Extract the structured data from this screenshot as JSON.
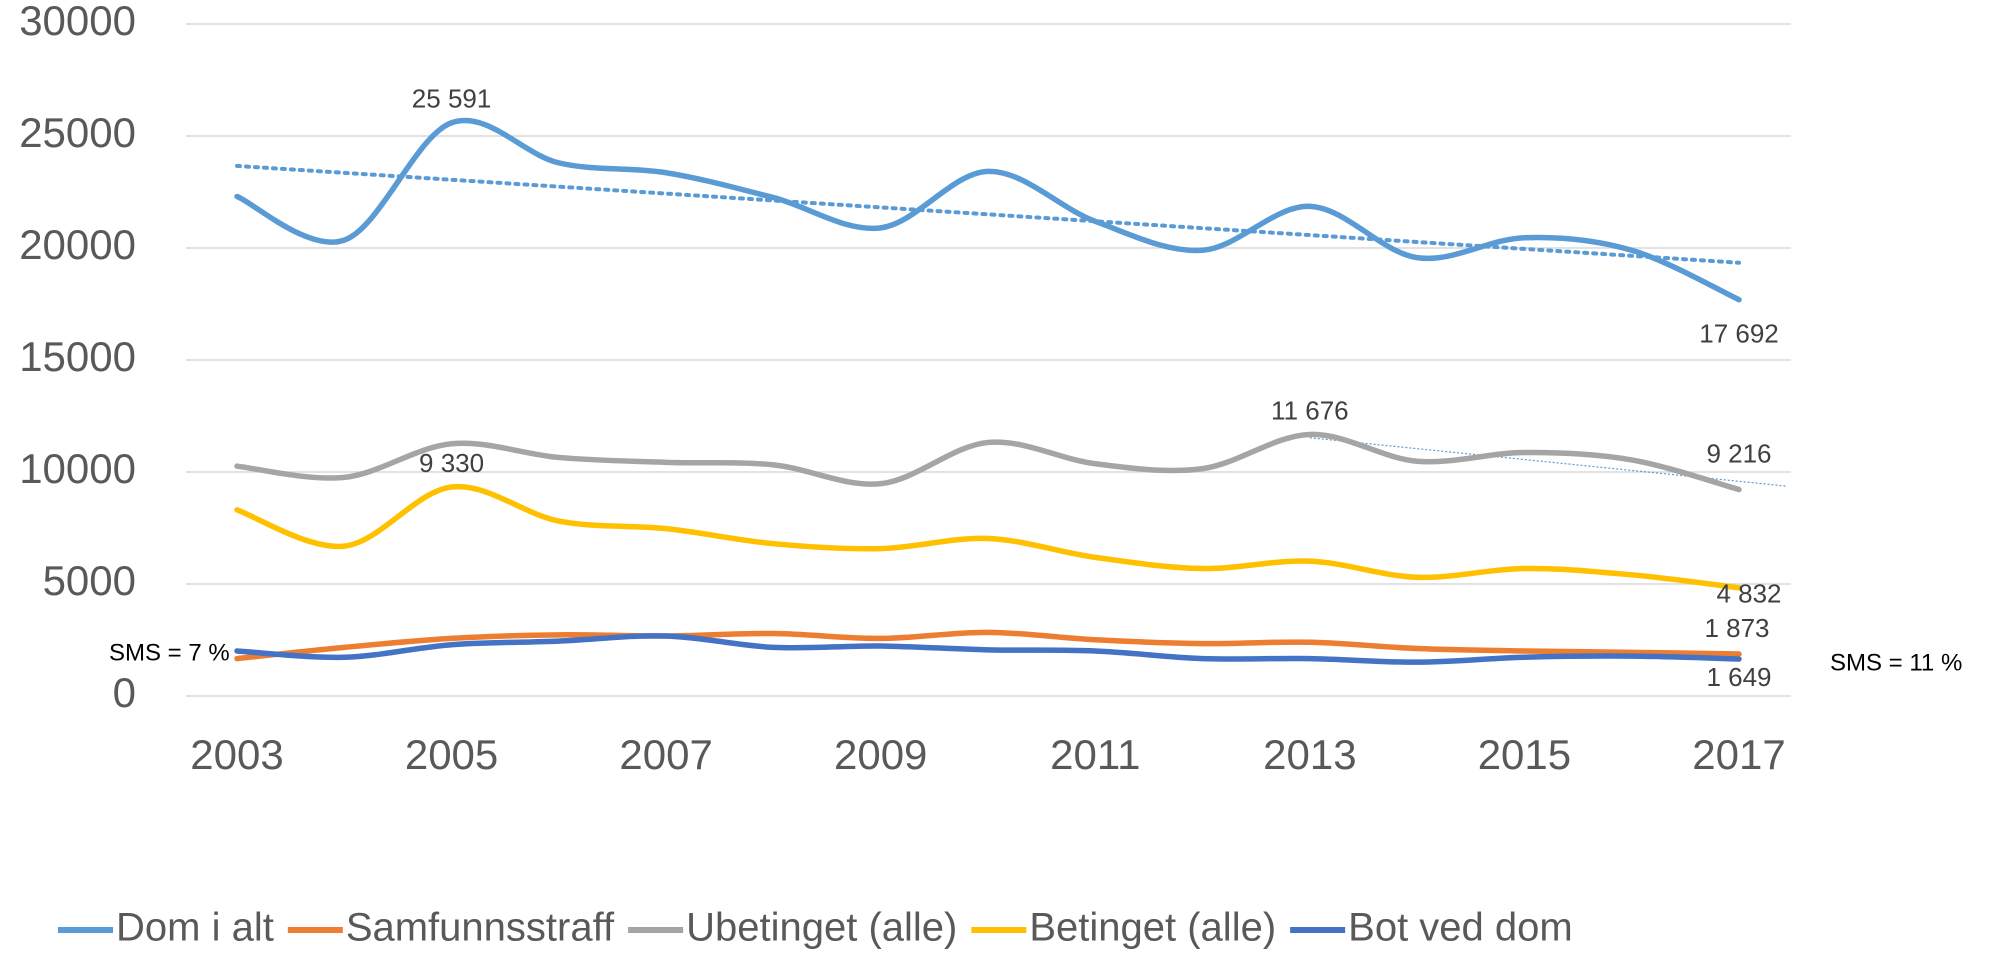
{
  "chart_data": {
    "type": "line",
    "categories": [
      "2003",
      null,
      "2005",
      null,
      "2007",
      null,
      "2009",
      null,
      "2011",
      null,
      "2013",
      null,
      "2015",
      null,
      "2017"
    ],
    "ylim": [
      0,
      30000
    ],
    "yticks": [
      0,
      5000,
      10000,
      15000,
      20000,
      25000,
      30000
    ],
    "grid": true,
    "legend": "bottom",
    "smooth": true,
    "series": [
      {
        "name": "Dom i alt",
        "color": "#5b9bd5",
        "values": [
          22300,
          20350,
          25591,
          23800,
          23360,
          22250,
          20900,
          23420,
          21190,
          19900,
          21860,
          19570,
          20460,
          19900,
          17692
        ],
        "value_labels": [
          null,
          null,
          "25 591",
          null,
          null,
          null,
          null,
          null,
          null,
          null,
          null,
          null,
          null,
          null,
          "17 692"
        ],
        "trendline": true
      },
      {
        "name": "Samfunnsstraff",
        "color": "#ed7d31",
        "values": [
          1670,
          2170,
          2570,
          2730,
          2680,
          2790,
          2570,
          2840,
          2510,
          2340,
          2400,
          2120,
          2010,
          1950,
          1873
        ],
        "value_labels": [
          null,
          null,
          null,
          null,
          null,
          null,
          null,
          null,
          null,
          null,
          null,
          null,
          null,
          null,
          "1 873"
        ]
      },
      {
        "name": "Ubetinget (alle)",
        "color": "#a5a5a5",
        "values": [
          10260,
          9760,
          11260,
          10650,
          10430,
          10320,
          9480,
          11320,
          10370,
          10150,
          11676,
          10480,
          10870,
          10540,
          9216
        ],
        "value_labels": [
          null,
          null,
          null,
          null,
          null,
          null,
          null,
          null,
          null,
          null,
          "11 676",
          null,
          null,
          null,
          "9 216"
        ],
        "trendline_from": "2013"
      },
      {
        "name": "Betinget (alle)",
        "color": "#ffc000",
        "values": [
          8310,
          6690,
          9330,
          7810,
          7470,
          6800,
          6580,
          7030,
          6190,
          5690,
          6020,
          5300,
          5690,
          5410,
          4832
        ],
        "value_labels": [
          null,
          null,
          "9 330",
          null,
          null,
          null,
          null,
          null,
          null,
          null,
          null,
          null,
          null,
          null,
          "4 832"
        ]
      },
      {
        "name": "Bot ved dom",
        "color": "#4472c4",
        "values": [
          2010,
          1730,
          2290,
          2450,
          2680,
          2170,
          2230,
          2060,
          2010,
          1670,
          1670,
          1510,
          1730,
          1780,
          1649
        ],
        "value_labels": [
          null,
          null,
          null,
          null,
          null,
          null,
          null,
          null,
          null,
          null,
          null,
          null,
          null,
          null,
          "1 649"
        ]
      }
    ],
    "annotations": [
      "SMS = 7 %",
      "SMS = 11 %"
    ]
  }
}
